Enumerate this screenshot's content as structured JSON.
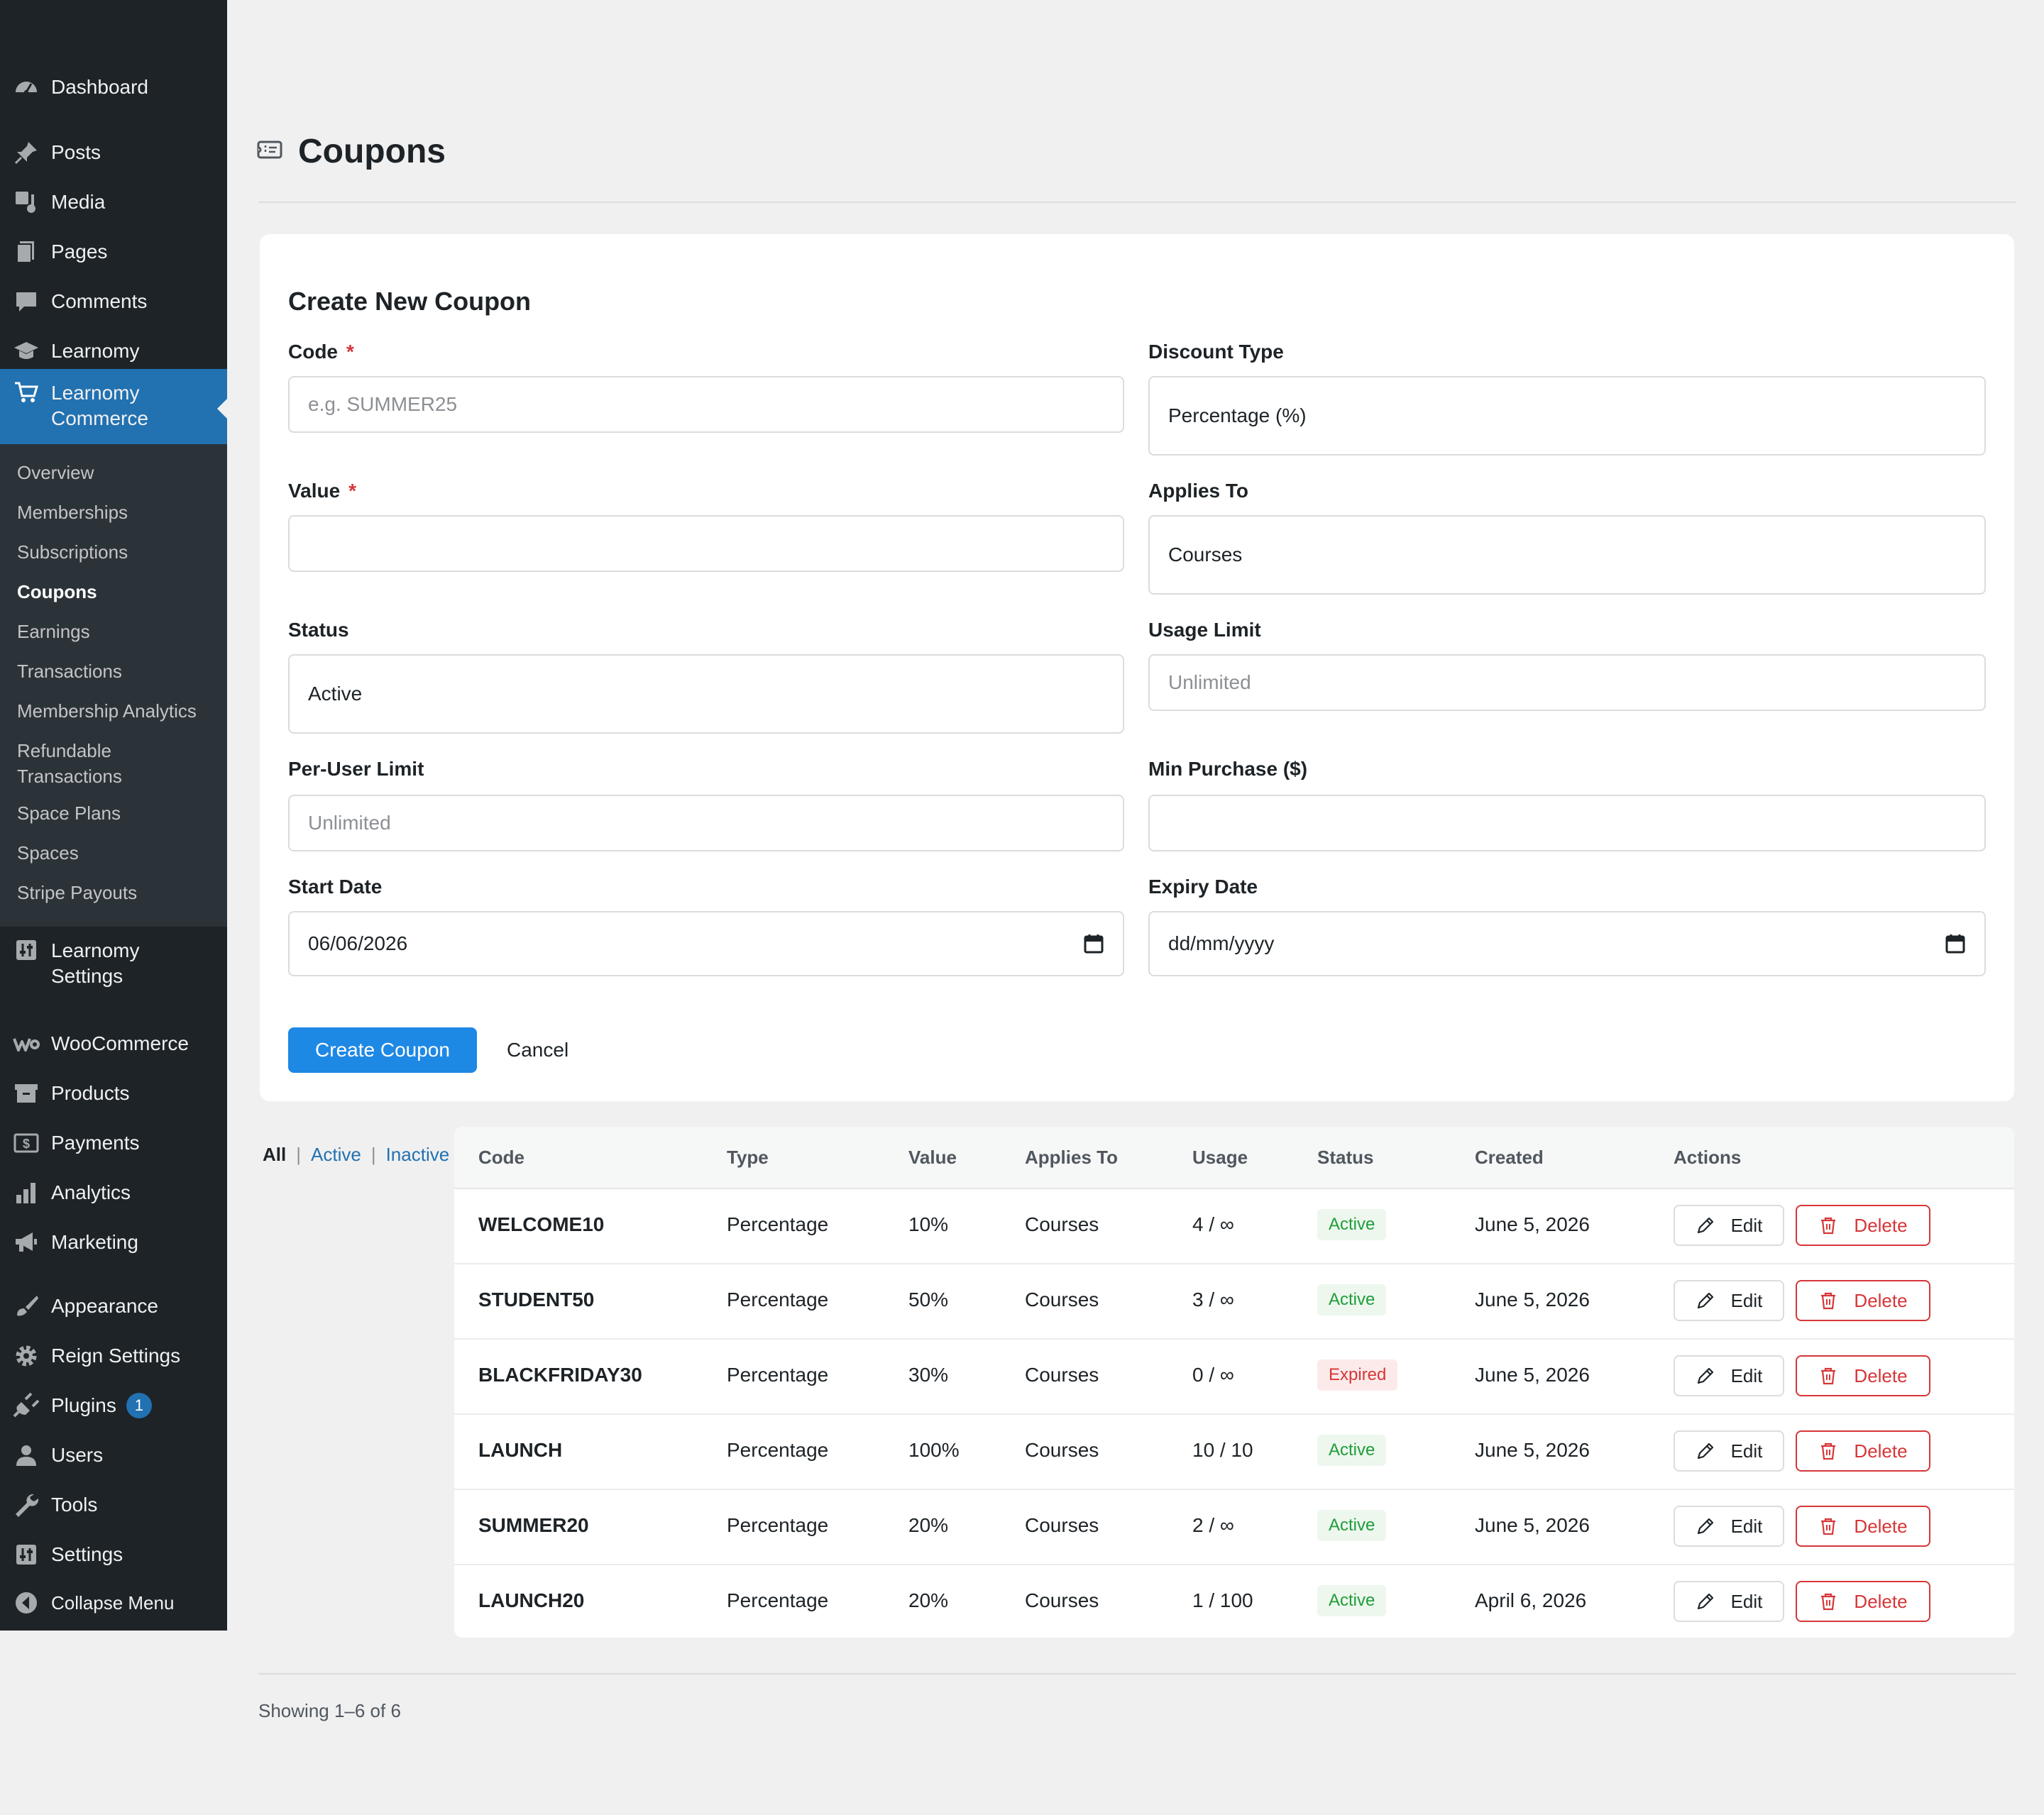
{
  "sidebar": {
    "menu": [
      {
        "label": "Dashboard",
        "icon": "dashboard-icon"
      },
      {
        "label": "Posts",
        "icon": "pin-icon"
      },
      {
        "label": "Media",
        "icon": "media-icon"
      },
      {
        "label": "Pages",
        "icon": "pages-icon"
      },
      {
        "label": "Comments",
        "icon": "comment-icon"
      },
      {
        "label": "Learnomy",
        "icon": "graduation-cap-icon"
      },
      {
        "label": "Learnomy\nCommerce",
        "icon": "cart-icon"
      },
      {
        "label": "Learnomy\nSettings",
        "icon": "settings-sliders-icon"
      },
      {
        "label": "WooCommerce",
        "icon": "woo-icon"
      },
      {
        "label": "Products",
        "icon": "archive-icon"
      },
      {
        "label": "Payments",
        "icon": "money-icon"
      },
      {
        "label": "Analytics",
        "icon": "bar-chart-icon"
      },
      {
        "label": "Marketing",
        "icon": "megaphone-icon"
      },
      {
        "label": "Appearance",
        "icon": "brush-icon"
      },
      {
        "label": "Reign Settings",
        "icon": "gear-icon"
      },
      {
        "label": "Plugins",
        "icon": "plug-icon",
        "badge": "1"
      },
      {
        "label": "Users",
        "icon": "user-icon"
      },
      {
        "label": "Tools",
        "icon": "wrench-icon"
      },
      {
        "label": "Settings",
        "icon": "sliders-icon"
      },
      {
        "label": "Collapse Menu",
        "icon": "collapse-icon"
      }
    ],
    "submenu": [
      "Overview",
      "Memberships",
      "Subscriptions",
      "Coupons",
      "Earnings",
      "Transactions",
      "Membership Analytics",
      "Refundable\nTransactions",
      "Space Plans",
      "Spaces",
      "Stripe Payouts"
    ],
    "colors": {
      "bg": "#1d2327",
      "current": "#2271b1",
      "submenu_bg": "#2c3338"
    }
  },
  "page": {
    "title": "Coupons",
    "icon": "ticket-icon"
  },
  "form": {
    "heading": "Create New Coupon",
    "code": {
      "label": "Code",
      "required": "*",
      "placeholder": "e.g. SUMMER25",
      "value": ""
    },
    "discount_type": {
      "label": "Discount Type",
      "value": "Percentage (%)"
    },
    "value": {
      "label": "Value",
      "required": "*",
      "value": ""
    },
    "applies_to": {
      "label": "Applies To",
      "value": "Courses"
    },
    "status": {
      "label": "Status",
      "value": "Active"
    },
    "usage_limit": {
      "label": "Usage Limit",
      "placeholder": "Unlimited"
    },
    "per_user_limit": {
      "label": "Per-User Limit",
      "placeholder": "Unlimited"
    },
    "min_purchase": {
      "label": "Min Purchase ($)",
      "value": ""
    },
    "start_date": {
      "label": "Start Date",
      "value": "06/06/2026"
    },
    "expiry_date": {
      "label": "Expiry Date",
      "value": "dd/mm/yyyy"
    },
    "create_label": "Create Coupon",
    "cancel_label": "Cancel",
    "accent": "#1e88e5"
  },
  "filters": {
    "all": "All",
    "active": "Active",
    "inactive": "Inactive",
    "sep": "|"
  },
  "table": {
    "headers": [
      "Code",
      "Type",
      "Value",
      "Applies To",
      "Usage",
      "Status",
      "Created",
      "Actions"
    ],
    "rows": [
      {
        "code": "WELCOME10",
        "type": "Percentage",
        "value": "10%",
        "applies": "Courses",
        "usage": "4 / ∞",
        "status": "Active",
        "created": "June 5, 2026"
      },
      {
        "code": "STUDENT50",
        "type": "Percentage",
        "value": "50%",
        "applies": "Courses",
        "usage": "3 / ∞",
        "status": "Active",
        "created": "June 5, 2026"
      },
      {
        "code": "BLACKFRIDAY30",
        "type": "Percentage",
        "value": "30%",
        "applies": "Courses",
        "usage": "0 / ∞",
        "status": "Expired",
        "created": "June 5, 2026"
      },
      {
        "code": "LAUNCH",
        "type": "Percentage",
        "value": "100%",
        "applies": "Courses",
        "usage": "10 / 10",
        "status": "Active",
        "created": "June 5, 2026"
      },
      {
        "code": "SUMMER20",
        "type": "Percentage",
        "value": "20%",
        "applies": "Courses",
        "usage": "2 / ∞",
        "status": "Active",
        "created": "June 5, 2026"
      },
      {
        "code": "LAUNCH20",
        "type": "Percentage",
        "value": "20%",
        "applies": "Courses",
        "usage": "1 / 100",
        "status": "Active",
        "created": "April 6, 2026"
      }
    ],
    "edit_label": "Edit",
    "delete_label": "Delete"
  },
  "footer": {
    "showing": "Showing 1–6 of 6"
  }
}
